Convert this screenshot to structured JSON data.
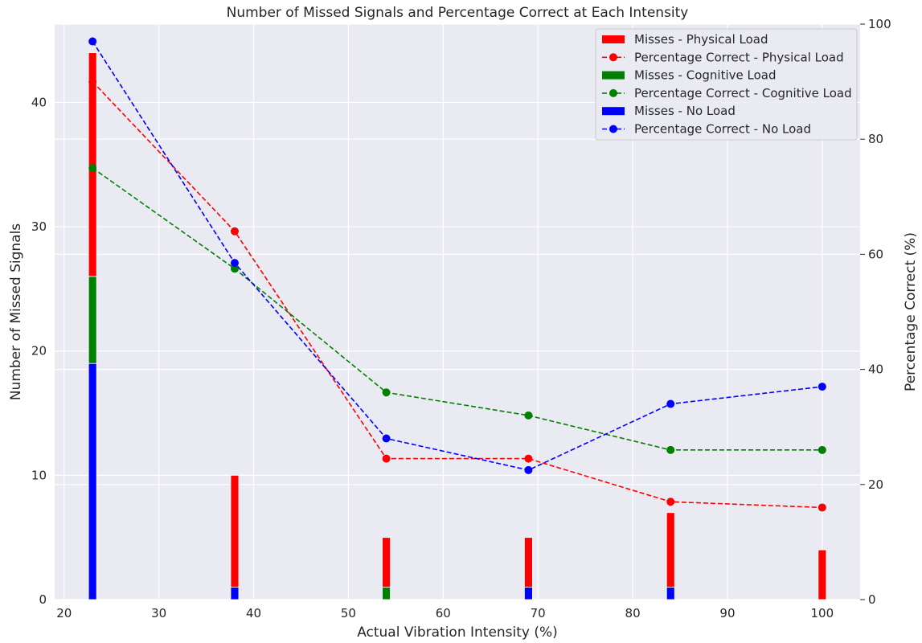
{
  "chart_data": {
    "type": "bar+line",
    "title": "Number of Missed Signals and Percentage Correct at Each Intensity",
    "xlabel": "Actual Vibration Intensity (%)",
    "ylabel_left": "Number of Missed Signals",
    "ylabel_right": "Percentage Correct (%)",
    "xlim": [
      19,
      104
    ],
    "ylim_left": [
      0,
      46.3
    ],
    "ylim_right": [
      0,
      100
    ],
    "x_ticks": [
      20,
      30,
      40,
      50,
      60,
      70,
      80,
      90,
      100
    ],
    "y_left_ticks": [
      0,
      10,
      20,
      30,
      40
    ],
    "y_right_ticks": [
      0,
      20,
      40,
      60,
      80,
      100
    ],
    "grid": true,
    "legend_position": "top-right",
    "x": [
      23,
      38,
      54,
      69,
      84,
      100
    ],
    "series": [
      {
        "load": "Physical Load",
        "color": "#ff0000",
        "bar_label": "Misses - Physical Load",
        "line_label": "Percentage Correct - Physical Load",
        "misses": [
          18,
          9,
          4,
          4,
          6,
          4
        ],
        "misses_base": [
          26,
          1,
          1,
          1,
          1,
          0
        ],
        "percent_correct": [
          90,
          64,
          24.5,
          24.5,
          17,
          16
        ]
      },
      {
        "load": "Cognitive Load",
        "color": "#008000",
        "bar_label": "Misses - Cognitive Load",
        "line_label": "Percentage Correct - Cognitive Load",
        "misses": [
          7,
          0,
          1,
          0,
          0,
          0
        ],
        "misses_base": [
          19,
          0,
          0,
          0,
          0,
          0
        ],
        "percent_correct": [
          75,
          57.5,
          36,
          32,
          26,
          26
        ]
      },
      {
        "load": "No Load",
        "color": "#0000ff",
        "bar_label": "Misses - No Load",
        "line_label": "Percentage Correct - No Load",
        "misses": [
          19,
          1,
          0,
          1,
          1,
          0
        ],
        "misses_base": [
          0,
          0,
          0,
          0,
          0,
          0
        ],
        "percent_correct": [
          97,
          58.5,
          28,
          22.5,
          34,
          37
        ]
      }
    ]
  }
}
